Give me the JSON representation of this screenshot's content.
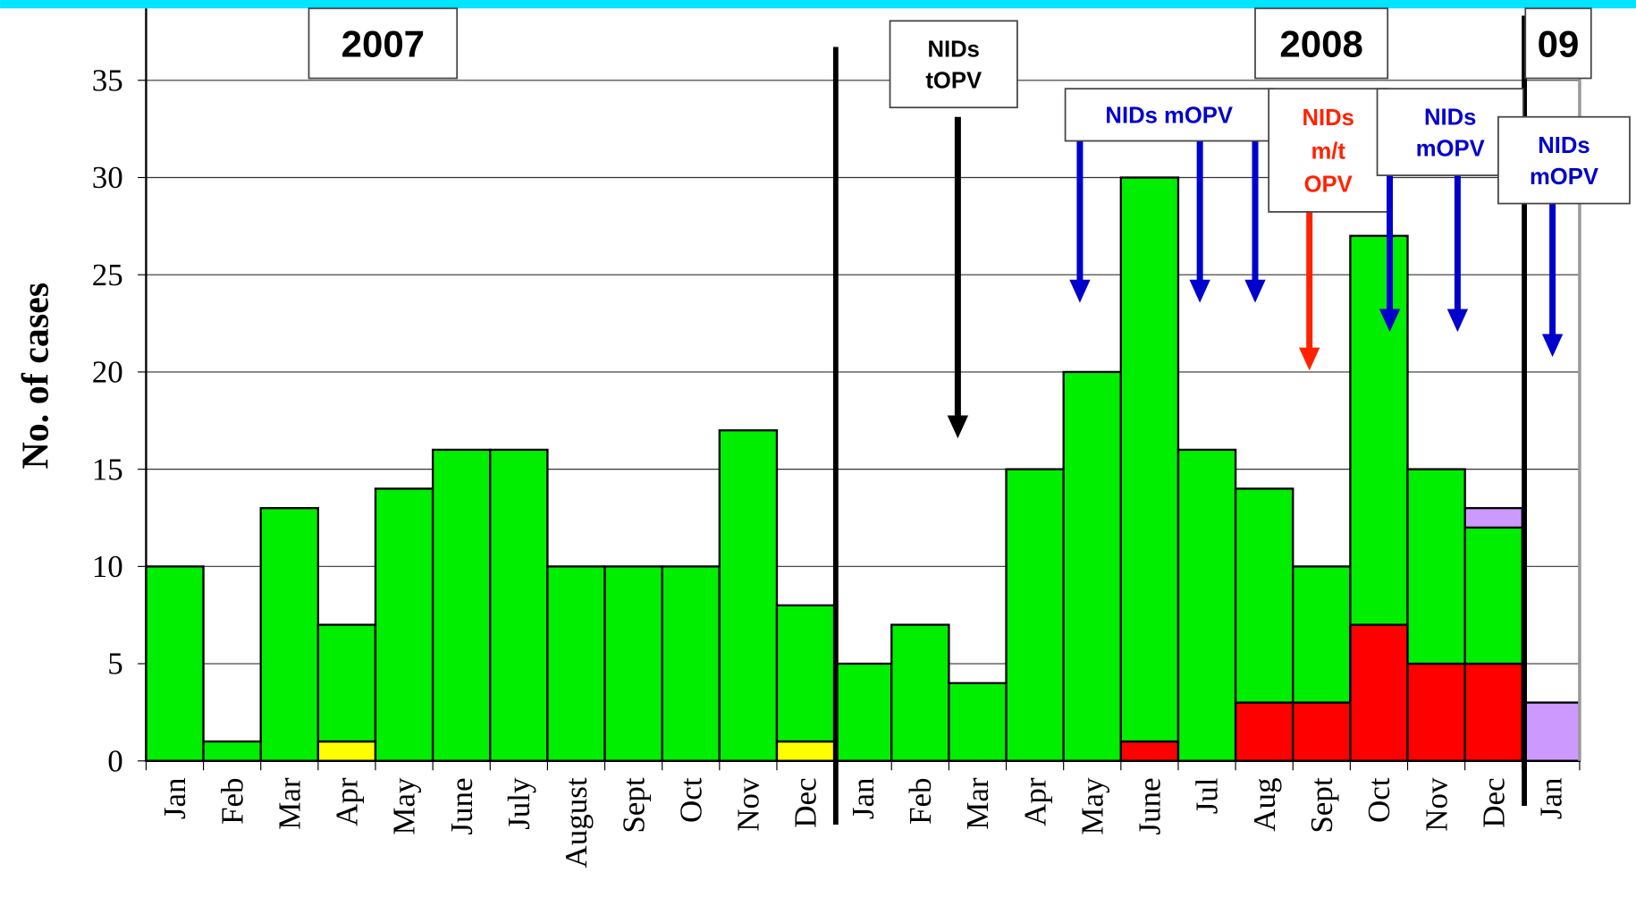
{
  "chart_data": {
    "type": "bar",
    "stacked": true,
    "y_label": "No. of cases",
    "categories": [
      "Jan",
      "Feb",
      "Mar",
      "Apr",
      "May",
      "June",
      "July",
      "August",
      "Sept",
      "Oct",
      "Nov",
      "Dec",
      "Jan",
      "Feb",
      "Mar",
      "Apr",
      "May",
      "June",
      "Jul",
      "Aug",
      "Sept",
      "Oct",
      "Nov",
      "Dec",
      "Jan"
    ],
    "series": [
      {
        "color": "#ff0000",
        "values": [
          0,
          0,
          0,
          0,
          0,
          0,
          0,
          0,
          0,
          0,
          0,
          0,
          0,
          0,
          0,
          0,
          0,
          1,
          0,
          3,
          3,
          7,
          5,
          5,
          0
        ]
      },
      {
        "color": "#ffff00",
        "values": [
          0,
          0,
          0,
          1,
          0,
          0,
          0,
          0,
          0,
          0,
          0,
          1,
          0,
          0,
          0,
          0,
          0,
          0,
          0,
          0,
          0,
          0,
          0,
          0,
          0
        ]
      },
      {
        "color": "#00ee00",
        "values": [
          10,
          1,
          13,
          6,
          14,
          16,
          16,
          10,
          10,
          10,
          17,
          7,
          5,
          7,
          4,
          15,
          20,
          29,
          16,
          11,
          7,
          20,
          10,
          7,
          0
        ]
      },
      {
        "color": "#cc99ff",
        "values": [
          0,
          0,
          0,
          0,
          0,
          0,
          0,
          0,
          0,
          0,
          0,
          0,
          0,
          0,
          0,
          0,
          0,
          0,
          0,
          0,
          0,
          0,
          0,
          1,
          3
        ]
      }
    ],
    "ylim": [
      0,
      38.7
    ],
    "yticks": [
      0,
      5,
      10,
      15,
      20,
      25,
      30,
      35
    ],
    "grid": true,
    "annotations": [
      {
        "lines": [
          "2007"
        ],
        "color": "#000000"
      },
      {
        "lines": [
          "NIDs",
          "tOPV"
        ],
        "color": "#000000"
      },
      {
        "lines": [
          "2008"
        ],
        "color": "#000000"
      },
      {
        "lines": [
          "09"
        ],
        "color": "#000000"
      },
      {
        "lines": [
          "NIDs mOPV"
        ],
        "color": "#0000cc"
      },
      {
        "lines": [
          "NIDs",
          "m/t",
          "OPV"
        ],
        "color": "#ff2200"
      },
      {
        "lines": [
          "NIDs",
          "mOPV"
        ],
        "color": "#0000cc"
      },
      {
        "lines": [
          "NIDs",
          "mOPV"
        ],
        "color": "#0000cc"
      }
    ]
  }
}
